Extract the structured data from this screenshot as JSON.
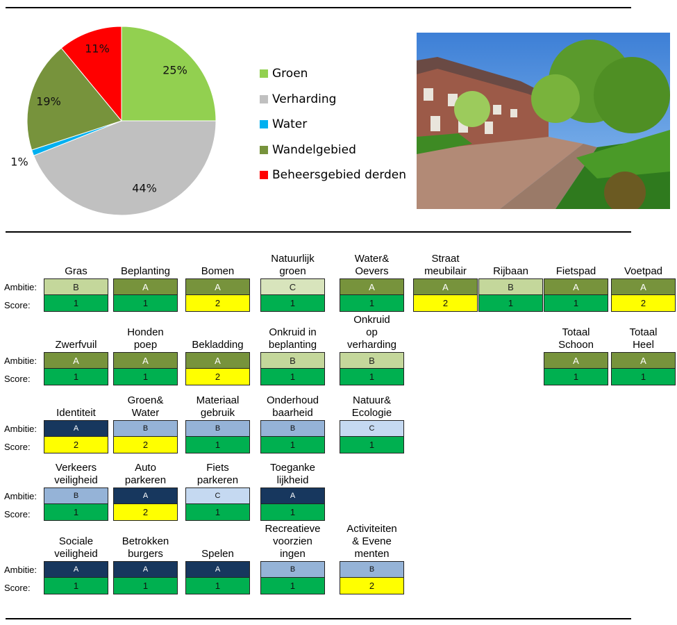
{
  "chart_data": {
    "type": "pie",
    "slices": [
      {
        "label": "Groen",
        "value": 25,
        "data_label": "25%",
        "color": "#92d050"
      },
      {
        "label": "Verharding",
        "value": 44,
        "data_label": "44%",
        "color": "#c0c0c0"
      },
      {
        "label": "Water",
        "value": 1,
        "data_label": "1%",
        "color": "#00b0f0"
      },
      {
        "label": "Wandelgebied",
        "value": 19,
        "data_label": "19%",
        "color": "#77933c"
      },
      {
        "label": "Beheersgebied derden",
        "value": 11,
        "data_label": "11%",
        "color": "#ff0000"
      }
    ],
    "legend_position": "right"
  },
  "labels": {
    "ambitie": "Ambitie:",
    "score": "Score:"
  },
  "rows": [
    {
      "style": "green",
      "cells": [
        {
          "title": "Gras",
          "ambitie": "B",
          "score": "1"
        },
        {
          "title": "Beplanting",
          "ambitie": "A",
          "score": "1"
        },
        {
          "title": "Bomen",
          "ambitie": "A",
          "score": "2"
        },
        {
          "title": "Natuurlijk\ngroen",
          "ambitie": "C",
          "score": "1"
        },
        {
          "title": "Water&\nOevers",
          "ambitie": "A",
          "score": "1"
        },
        {
          "title": "Straat\nmeubilair",
          "ambitie": "A",
          "score": "2"
        },
        {
          "title": "Rijbaan",
          "ambitie": "B",
          "score": "1"
        },
        {
          "title": "Fietspad",
          "ambitie": "A",
          "score": "1"
        },
        {
          "title": "Voetpad",
          "ambitie": "A",
          "score": "2"
        }
      ]
    },
    {
      "style": "green",
      "cells": [
        {
          "title": "Zwerfvuil",
          "ambitie": "A",
          "score": "1"
        },
        {
          "title": "Honden\npoep",
          "ambitie": "A",
          "score": "1"
        },
        {
          "title": "Bekladding",
          "ambitie": "A",
          "score": "2"
        },
        {
          "title": "Onkruid in\nbeplanting",
          "ambitie": "B",
          "score": "1"
        },
        {
          "title": "Onkruid\nop\nverharding",
          "ambitie": "B",
          "score": "1"
        },
        null,
        null,
        {
          "title": "Totaal\nSchoon",
          "ambitie": "A",
          "score": "1"
        },
        {
          "title": "Totaal\nHeel",
          "ambitie": "A",
          "score": "1"
        }
      ]
    },
    {
      "style": "blue",
      "cells": [
        {
          "title": "Identiteit",
          "ambitie": "A",
          "score": "2"
        },
        {
          "title": "Groen&\nWater",
          "ambitie": "B",
          "score": "2"
        },
        {
          "title": "Materiaal\ngebruik",
          "ambitie": "B",
          "score": "1"
        },
        {
          "title": "Onderhoud\nbaarheid",
          "ambitie": "B",
          "score": "1"
        },
        {
          "title": "Natuur&\nEcologie",
          "ambitie": "C",
          "score": "1"
        }
      ]
    },
    {
      "style": "blue",
      "cells": [
        {
          "title": "Verkeers\nveiligheid",
          "ambitie": "B",
          "score": "1"
        },
        {
          "title": "Auto\nparkeren",
          "ambitie": "A",
          "score": "2"
        },
        {
          "title": "Fiets\nparkeren",
          "ambitie": "C",
          "score": "1"
        },
        {
          "title": "Toeganke\nlijkheid",
          "ambitie": "A",
          "score": "1"
        }
      ]
    },
    {
      "style": "blue",
      "cells": [
        {
          "title": "Sociale\nveiligheid",
          "ambitie": "A",
          "score": "1"
        },
        {
          "title": "Betrokken\nburgers",
          "ambitie": "A",
          "score": "1"
        },
        {
          "title": "Spelen",
          "ambitie": "A",
          "score": "1"
        },
        {
          "title": "Recreatieve\nvoorzien\ningen",
          "ambitie": "B",
          "score": "1"
        },
        {
          "title": "Activiteiten\n& Evene\nmenten",
          "ambitie": "B",
          "score": "2"
        }
      ]
    }
  ]
}
